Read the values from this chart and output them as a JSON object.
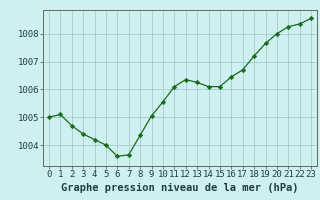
{
  "x": [
    0,
    1,
    2,
    3,
    4,
    5,
    6,
    7,
    8,
    9,
    10,
    11,
    12,
    13,
    14,
    15,
    16,
    17,
    18,
    19,
    20,
    21,
    22,
    23
  ],
  "y": [
    1005.0,
    1005.1,
    1004.7,
    1004.4,
    1004.2,
    1004.0,
    1003.6,
    1003.65,
    1004.35,
    1005.05,
    1005.55,
    1006.1,
    1006.35,
    1006.25,
    1006.1,
    1006.1,
    1006.45,
    1006.7,
    1007.2,
    1007.65,
    1008.0,
    1008.25,
    1008.35,
    1008.55
  ],
  "line_color": "#1a6b1a",
  "marker": "D",
  "marker_size": 2.2,
  "bg_color": "#cef0f0",
  "grid_color": "#aacccc",
  "axis_color": "#666666",
  "xlabel": "Graphe pression niveau de la mer (hPa)",
  "xlabel_fontsize": 7.5,
  "xlabel_color": "#1a4040",
  "yticks": [
    1004,
    1005,
    1006,
    1007,
    1008
  ],
  "ylim": [
    1003.25,
    1008.85
  ],
  "xlim": [
    -0.5,
    23.5
  ],
  "tick_fontsize": 6.5,
  "tick_color": "#1a4040"
}
